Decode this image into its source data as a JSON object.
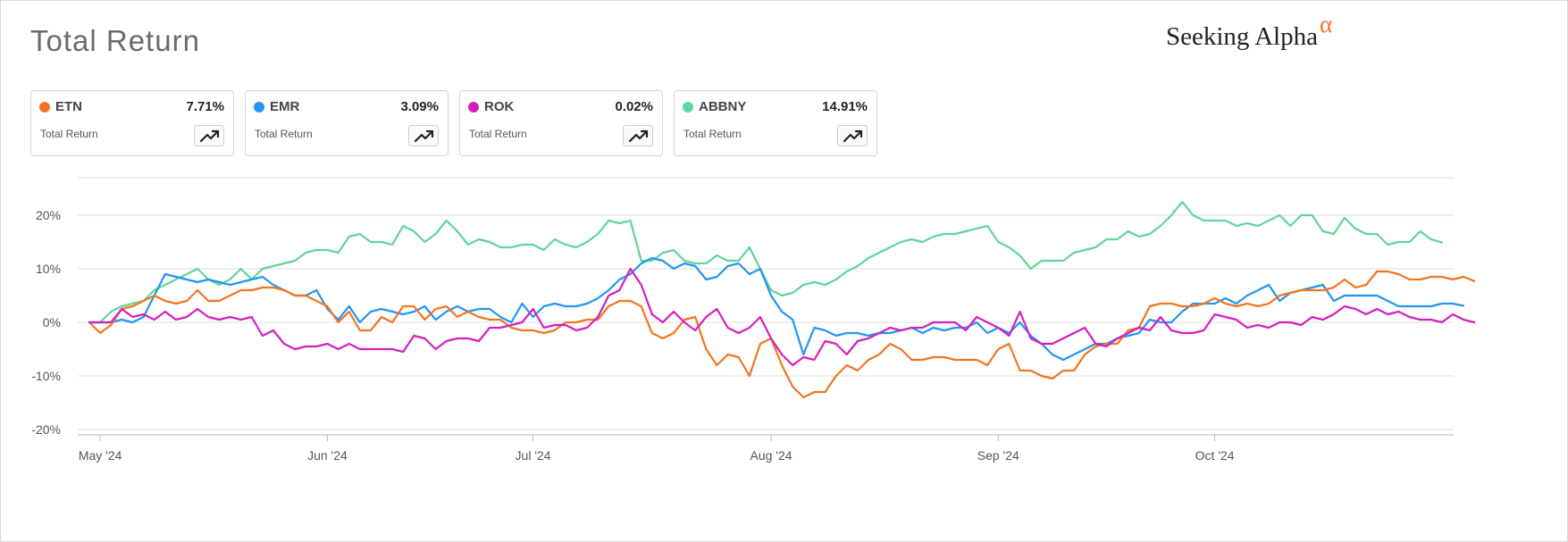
{
  "title": "Total Return",
  "brand": {
    "name": "Seeking Alpha",
    "mark": "α"
  },
  "cards": [
    {
      "ticker": "ETN",
      "value": "7.71%",
      "sub": "Total Return",
      "color": "#f4751f",
      "icon": "trending-up-icon"
    },
    {
      "ticker": "EMR",
      "value": "3.09%",
      "sub": "Total Return",
      "color": "#2196f3",
      "icon": "trending-up-icon"
    },
    {
      "ticker": "ROK",
      "value": "0.02%",
      "sub": "Total Return",
      "color": "#d41fc0",
      "icon": "trending-up-icon"
    },
    {
      "ticker": "ABBNY",
      "value": "14.91%",
      "sub": "Total Return",
      "color": "#5fd69a",
      "icon": "trending-up-icon"
    }
  ],
  "chart_data": {
    "type": "line",
    "title": "Total Return",
    "xlabel": "",
    "ylabel": "",
    "ylim": [
      -20,
      27
    ],
    "grid": true,
    "legend": "top",
    "y_ticks": [
      {
        "label": "20%",
        "value": 20
      },
      {
        "label": "10%",
        "value": 10
      },
      {
        "label": "0%",
        "value": 0
      },
      {
        "label": "-10%",
        "value": -10
      },
      {
        "label": "-20%",
        "value": -20
      }
    ],
    "x_ticks": [
      {
        "label": "May '24",
        "index": 1
      },
      {
        "label": "Jun '24",
        "index": 22
      },
      {
        "label": "Jul '24",
        "index": 41
      },
      {
        "label": "Aug '24",
        "index": 63
      },
      {
        "label": "Sep '24",
        "index": 84
      },
      {
        "label": "Oct '24",
        "index": 104
      }
    ],
    "x_count": 127,
    "series": [
      {
        "name": "ETN",
        "color": "#f4751f",
        "values": [
          0,
          -2,
          -0.5,
          2.5,
          3,
          4,
          5,
          4,
          3.5,
          4,
          6,
          4,
          4,
          5,
          6,
          6,
          6.5,
          6.5,
          6,
          5,
          5,
          4,
          3,
          0,
          2,
          -1.5,
          -1.5,
          1,
          0,
          3,
          3,
          0.5,
          2.5,
          3,
          1,
          2,
          1,
          0.5,
          0.5,
          -1,
          -1.5,
          -1.5,
          -2,
          -1.5,
          0,
          0,
          0.5,
          0.5,
          3,
          4,
          4,
          3,
          -2,
          -3,
          -2,
          0.5,
          1,
          -5,
          -8,
          -6,
          -6.5,
          -10,
          -4,
          -3,
          -8,
          -12,
          -14,
          -13,
          -13,
          -10,
          -8,
          -9,
          -7,
          -6,
          -4,
          -5,
          -7,
          -7,
          -6.5,
          -6.5,
          -7,
          -7,
          -7,
          -8,
          -5,
          -4,
          -9,
          -9,
          -10,
          -10.5,
          -9,
          -9,
          -6,
          -4.5,
          -4,
          -4,
          -1.5,
          -1,
          3,
          3.5,
          3.5,
          3,
          3,
          3.5,
          4.5,
          3.5,
          3,
          3.5,
          3,
          3.5,
          5,
          5.5,
          6,
          6,
          6,
          6.5,
          8,
          6.5,
          7,
          9.5,
          9.5,
          9,
          8,
          8,
          8.5,
          8.5,
          8,
          8.5,
          7.7
        ]
      },
      {
        "name": "EMR",
        "color": "#2196f3",
        "values": [
          0,
          0,
          0,
          0.5,
          0,
          1,
          5,
          9,
          8.5,
          8,
          7.5,
          8,
          7.5,
          7,
          7.5,
          8,
          8.5,
          7,
          6,
          5,
          5,
          6,
          2.5,
          0.5,
          3,
          0,
          2,
          2.5,
          2,
          1.5,
          2,
          3,
          0.5,
          2,
          3,
          2,
          2.5,
          2.5,
          1,
          0,
          3.5,
          1,
          3,
          3.5,
          3,
          3,
          3.5,
          4.5,
          6,
          8,
          9,
          11,
          12,
          11.5,
          10,
          11,
          10.5,
          8,
          8.5,
          10.5,
          11,
          9,
          10,
          5,
          2,
          0.5,
          -6,
          -1,
          -1.5,
          -2.5,
          -2,
          -2,
          -2.5,
          -2,
          -2,
          -1.5,
          -1,
          -2,
          -1,
          -1.5,
          -1,
          -1,
          0,
          -2,
          -1,
          -2,
          0,
          -2.5,
          -4,
          -6,
          -7,
          -6,
          -5,
          -4,
          -4,
          -3,
          -2.5,
          -2,
          0.5,
          0,
          0,
          2,
          3.5,
          3.5,
          3.5,
          4.5,
          3.5,
          5,
          6,
          7,
          4,
          5.5,
          6,
          6.5,
          7,
          4,
          5,
          5,
          5,
          5,
          4,
          3,
          3,
          3,
          3,
          3.5,
          3.5,
          3.1
        ]
      },
      {
        "name": "ROK",
        "color": "#d41fc0",
        "values": [
          0,
          0,
          0,
          2.5,
          1,
          1.5,
          0.5,
          2,
          0.5,
          1,
          2.5,
          1,
          0.5,
          1,
          0.5,
          1,
          -2.5,
          -1.5,
          -4,
          -5,
          -4.5,
          -4.5,
          -4,
          -5,
          -4,
          -5,
          -5,
          -5,
          -5,
          -5.5,
          -2.5,
          -3,
          -5,
          -3.5,
          -3,
          -3,
          -3.5,
          -1,
          -1,
          -0.5,
          0,
          2.5,
          -1,
          -0.5,
          -0.5,
          -1.5,
          -1,
          1,
          5,
          6,
          10,
          7,
          1.5,
          0,
          2,
          0,
          -1.5,
          1,
          2.5,
          -1,
          -2,
          -1,
          1,
          -3,
          -6,
          -8,
          -6.5,
          -7,
          -3.5,
          -4,
          -6,
          -3.5,
          -3,
          -2,
          -1,
          -1.5,
          -1,
          -1,
          0,
          0,
          0,
          -1.5,
          1,
          0,
          -1,
          -2.5,
          2,
          -3,
          -4,
          -4,
          -3,
          -2,
          -1,
          -4,
          -4.5,
          -3,
          -2,
          -1,
          -1.5,
          1,
          -1.5,
          -2,
          -2,
          -1.5,
          1.5,
          1,
          0.5,
          -1,
          -0.5,
          -1,
          0,
          0,
          -0.5,
          1,
          0.5,
          1.5,
          3,
          2.5,
          1.5,
          2.5,
          1.5,
          2,
          1,
          0.5,
          0.5,
          0,
          1.5,
          0.5,
          0
        ]
      },
      {
        "name": "ABBNY",
        "color": "#5fd69a",
        "values": [
          0,
          0,
          2,
          3,
          3.5,
          4,
          6,
          7,
          8,
          9,
          10,
          8,
          7,
          8,
          10,
          8,
          10,
          10.5,
          11,
          11.5,
          13,
          13.5,
          13.5,
          13,
          16,
          16.5,
          15,
          15,
          14.5,
          18,
          17,
          15,
          16.5,
          19,
          17,
          14.5,
          15.5,
          15,
          14,
          14,
          14.5,
          14.5,
          13.5,
          15.5,
          14.5,
          14,
          15,
          16.5,
          19,
          18.5,
          19,
          11.5,
          11.5,
          13,
          13.5,
          11.5,
          11,
          11,
          12.5,
          11.5,
          11.5,
          14,
          10,
          6,
          5,
          5.5,
          7,
          7.5,
          7,
          8,
          9.5,
          10.5,
          12,
          13,
          14,
          15,
          15.5,
          15,
          16,
          16.5,
          16.5,
          17,
          17.5,
          18,
          15,
          14,
          12.5,
          10,
          11.5,
          11.5,
          11.5,
          13,
          13.5,
          14,
          15.5,
          15.5,
          17,
          16,
          16.5,
          18,
          20,
          22.5,
          20,
          19,
          19,
          19,
          18,
          18.5,
          18,
          19,
          20,
          18,
          20,
          20,
          17,
          16.5,
          19.5,
          17.5,
          16.5,
          16.5,
          14.5,
          15,
          15,
          17,
          15.5,
          14.9
        ]
      }
    ]
  }
}
